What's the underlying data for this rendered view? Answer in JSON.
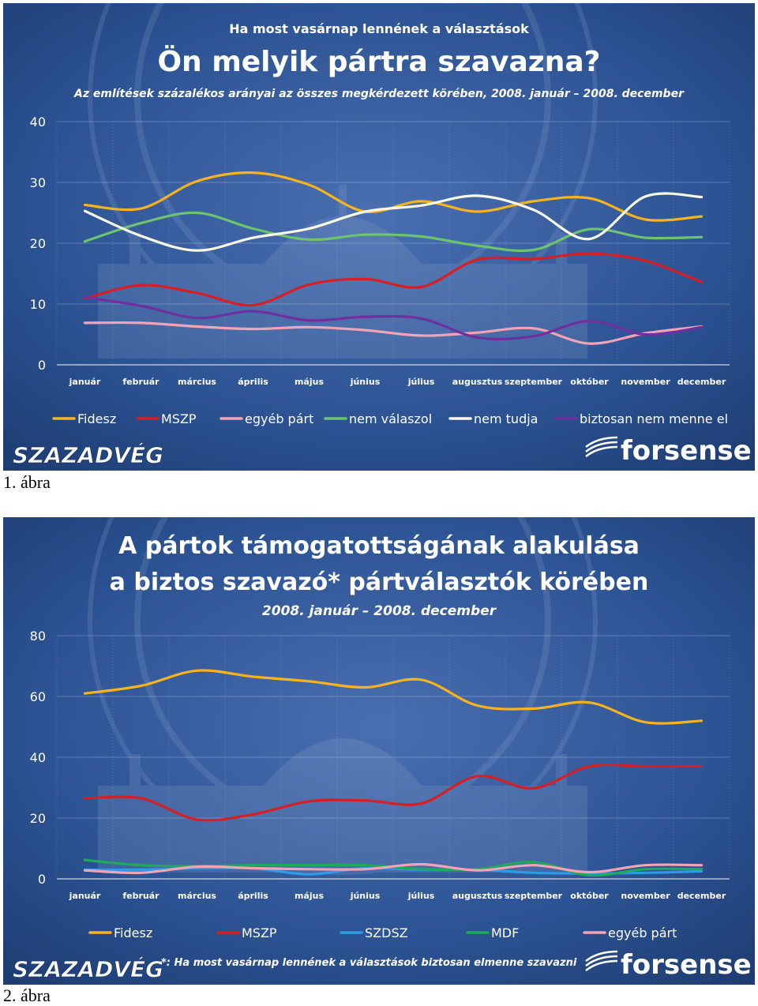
{
  "figure1": {
    "caption": "1. ábra",
    "pretitle": "Ha most vasárnap lennének a választások",
    "title": "Ön melyik pártra szavazna?",
    "subtitle": "Az említések százalékos arányai az összes megkérdezett körében, 2008. január – 2008. december",
    "brand_left": "SZAZADVÉG",
    "brand_right": "forsense",
    "colors": {
      "background": "#2a4f8e",
      "grid": "#dfe6f2"
    },
    "chart_data": {
      "type": "line",
      "categories": [
        "január",
        "február",
        "március",
        "április",
        "május",
        "június",
        "július",
        "augusztus",
        "szeptember",
        "október",
        "november",
        "december"
      ],
      "ylim": [
        0,
        40
      ],
      "yticks": [
        0,
        10,
        20,
        30,
        40
      ],
      "legend_position": "bottom",
      "series": [
        {
          "name": "Fidesz",
          "color": "#f6b31e",
          "values": [
            26.3,
            25.7,
            30.2,
            31.6,
            29.6,
            25.2,
            26.9,
            25.2,
            26.9,
            27.4,
            23.9,
            24.4
          ]
        },
        {
          "name": "MSZP",
          "color": "#d81e22",
          "values": [
            10.9,
            13.1,
            11.8,
            9.8,
            13.2,
            14.1,
            12.8,
            17.3,
            17.4,
            18.3,
            17.1,
            13.6
          ]
        },
        {
          "name": "egyéb párt",
          "color": "#f2a3b5",
          "values": [
            6.9,
            6.9,
            6.3,
            5.9,
            6.2,
            5.7,
            4.8,
            5.3,
            6.0,
            3.5,
            5.2,
            6.3
          ]
        },
        {
          "name": "nem válaszol",
          "color": "#6cc46e",
          "values": [
            20.3,
            23.3,
            25.0,
            22.4,
            20.6,
            21.4,
            21.1,
            19.6,
            18.9,
            22.3,
            20.9,
            21.0
          ]
        },
        {
          "name": "nem tudja",
          "color": "#f8f8e4",
          "values": [
            25.3,
            21.2,
            18.8,
            20.9,
            22.4,
            25.2,
            26.2,
            27.8,
            25.5,
            20.7,
            27.7,
            27.6
          ]
        },
        {
          "name": "biztosan nem menne el",
          "color": "#6f2fa0",
          "values": [
            11.1,
            9.7,
            7.7,
            8.8,
            7.3,
            7.9,
            7.6,
            4.5,
            4.7,
            7.2,
            5.0,
            6.2
          ]
        }
      ]
    }
  },
  "figure2": {
    "caption": "2. ábra",
    "title_line1": "A pártok támogatottságának alakulása",
    "title_line2": "a biztos szavazó* pártválasztók körében",
    "subtitle": "2008. január – 2008. december",
    "footnote": "*: Ha most vasárnap lennének a választások biztosan elmenne szavazni",
    "brand_left": "SZAZADVÉG",
    "brand_right": "forsense",
    "colors": {
      "background": "#2a4f8e",
      "grid": "#dfe6f2"
    },
    "chart_data": {
      "type": "line",
      "categories": [
        "január",
        "február",
        "március",
        "április",
        "május",
        "június",
        "július",
        "augusztus",
        "szeptember",
        "október",
        "november",
        "december"
      ],
      "ylim": [
        0,
        80
      ],
      "yticks": [
        0,
        20,
        40,
        60,
        80
      ],
      "legend_position": "bottom",
      "series": [
        {
          "name": "Fidesz",
          "color": "#f6b31e",
          "values": [
            61,
            63.5,
            68.5,
            66.5,
            65,
            63,
            65.5,
            57,
            56,
            58,
            51.5,
            52
          ]
        },
        {
          "name": "MSZP",
          "color": "#d81e22",
          "values": [
            26.5,
            26.5,
            19.5,
            21.2,
            25.5,
            25.8,
            24.8,
            33.8,
            29.8,
            37,
            37,
            37
          ]
        },
        {
          "name": "SZDSZ",
          "color": "#2f9ae6",
          "values": [
            3,
            3,
            3.5,
            3.5,
            1.5,
            3.5,
            3,
            3,
            2,
            1.8,
            2,
            2.5
          ]
        },
        {
          "name": "MDF",
          "color": "#1eaa5a",
          "values": [
            6.2,
            4.5,
            4.2,
            4.5,
            4.5,
            4.5,
            3.2,
            3.2,
            5.5,
            1.2,
            3.2,
            3.2
          ]
        },
        {
          "name": "egyéb párt",
          "color": "#f2a3b5",
          "values": [
            2.8,
            2,
            4,
            3.5,
            3.2,
            3.2,
            4.8,
            2.8,
            4.5,
            2.2,
            4.5,
            4.5
          ]
        }
      ]
    }
  }
}
